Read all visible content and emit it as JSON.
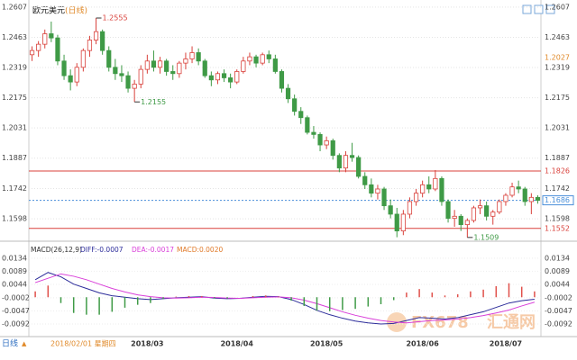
{
  "chart_data": [
    {
      "type": "candlestick",
      "title": "欧元美元",
      "period": "(日线)",
      "categories": [
        null,
        null,
        null,
        null,
        null,
        null,
        null,
        null,
        null,
        null,
        null,
        null,
        null,
        null,
        null,
        null,
        null,
        null,
        "2018/03",
        null,
        null,
        null,
        null,
        null,
        null,
        null,
        null,
        null,
        null,
        null,
        null,
        null,
        "2018/04",
        null,
        null,
        null,
        null,
        null,
        null,
        null,
        null,
        null,
        null,
        null,
        null,
        null,
        "2018/05",
        null,
        null,
        null,
        null,
        null,
        null,
        null,
        null,
        null,
        null,
        null,
        null,
        null,
        null,
        "2018/06",
        null,
        null,
        null,
        null,
        null,
        null,
        null,
        null,
        null,
        null,
        null,
        null,
        "2018/07",
        null,
        null,
        null,
        null,
        null
      ],
      "ohlc": [
        [
          1.238,
          1.242,
          1.235,
          1.24
        ],
        [
          1.24,
          1.2445,
          1.237,
          1.243
        ],
        [
          1.243,
          1.25,
          1.241,
          1.248
        ],
        [
          1.248,
          1.2538,
          1.244,
          1.246
        ],
        [
          1.246,
          1.2475,
          1.233,
          1.235
        ],
        [
          1.235,
          1.238,
          1.226,
          1.228
        ],
        [
          1.228,
          1.231,
          1.221,
          1.225
        ],
        [
          1.225,
          1.234,
          1.223,
          1.232
        ],
        [
          1.232,
          1.241,
          1.23,
          1.24
        ],
        [
          1.24,
          1.247,
          1.237,
          1.245
        ],
        [
          1.245,
          1.2555,
          1.243,
          1.249
        ],
        [
          1.249,
          1.25,
          1.238,
          1.24
        ],
        [
          1.24,
          1.242,
          1.23,
          1.232
        ],
        [
          1.232,
          1.236,
          1.226,
          1.229
        ],
        [
          1.229,
          1.233,
          1.225,
          1.228
        ],
        [
          1.228,
          1.23,
          1.22,
          1.222
        ],
        [
          1.222,
          1.226,
          1.2155,
          1.224
        ],
        [
          1.224,
          1.233,
          1.222,
          1.231
        ],
        [
          1.231,
          1.238,
          1.229,
          1.235
        ],
        [
          1.235,
          1.24,
          1.23,
          1.232
        ],
        [
          1.232,
          1.237,
          1.229,
          1.235
        ],
        [
          1.235,
          1.236,
          1.228,
          1.23
        ],
        [
          1.23,
          1.233,
          1.226,
          1.229
        ],
        [
          1.229,
          1.235,
          1.227,
          1.234
        ],
        [
          1.234,
          1.239,
          1.231,
          1.236
        ],
        [
          1.236,
          1.242,
          1.234,
          1.239
        ],
        [
          1.239,
          1.241,
          1.233,
          1.235
        ],
        [
          1.235,
          1.236,
          1.227,
          1.228
        ],
        [
          1.228,
          1.23,
          1.223,
          1.226
        ],
        [
          1.226,
          1.23,
          1.224,
          1.229
        ],
        [
          1.229,
          1.231,
          1.225,
          1.227
        ],
        [
          1.227,
          1.229,
          1.222,
          1.225
        ],
        [
          1.225,
          1.231,
          1.224,
          1.23
        ],
        [
          1.23,
          1.237,
          1.229,
          1.235
        ],
        [
          1.235,
          1.239,
          1.233,
          1.237
        ],
        [
          1.237,
          1.238,
          1.232,
          1.234
        ],
        [
          1.234,
          1.239,
          1.233,
          1.238
        ],
        [
          1.238,
          1.24,
          1.234,
          1.236
        ],
        [
          1.236,
          1.238,
          1.229,
          1.23
        ],
        [
          1.23,
          1.231,
          1.22,
          1.222
        ],
        [
          1.222,
          1.224,
          1.215,
          1.217
        ],
        [
          1.217,
          1.219,
          1.209,
          1.211
        ],
        [
          1.211,
          1.213,
          1.205,
          1.208
        ],
        [
          1.208,
          1.209,
          1.2,
          1.201
        ],
        [
          1.201,
          1.204,
          1.198,
          1.2
        ],
        [
          1.2,
          1.201,
          1.192,
          1.195
        ],
        [
          1.195,
          1.199,
          1.193,
          1.197
        ],
        [
          1.197,
          1.198,
          1.188,
          1.19
        ],
        [
          1.19,
          1.191,
          1.182,
          1.184
        ],
        [
          1.184,
          1.192,
          1.182,
          1.19
        ],
        [
          1.19,
          1.196,
          1.187,
          1.189
        ],
        [
          1.189,
          1.19,
          1.179,
          1.18
        ],
        [
          1.18,
          1.182,
          1.174,
          1.176
        ],
        [
          1.176,
          1.179,
          1.17,
          1.172
        ],
        [
          1.172,
          1.176,
          1.169,
          1.174
        ],
        [
          1.174,
          1.175,
          1.164,
          1.166
        ],
        [
          1.166,
          1.169,
          1.16,
          1.162
        ],
        [
          1.162,
          1.165,
          1.151,
          1.154
        ],
        [
          1.154,
          1.164,
          1.152,
          1.162
        ],
        [
          1.162,
          1.17,
          1.16,
          1.168
        ],
        [
          1.168,
          1.174,
          1.166,
          1.172
        ],
        [
          1.172,
          1.178,
          1.17,
          1.176
        ],
        [
          1.176,
          1.18,
          1.172,
          1.174
        ],
        [
          1.174,
          1.183,
          1.173,
          1.179
        ],
        [
          1.179,
          1.18,
          1.166,
          1.168
        ],
        [
          1.168,
          1.169,
          1.158,
          1.16
        ],
        [
          1.16,
          1.164,
          1.156,
          1.161
        ],
        [
          1.161,
          1.162,
          1.154,
          1.157
        ],
        [
          1.157,
          1.16,
          1.1509,
          1.159
        ],
        [
          1.159,
          1.166,
          1.158,
          1.165
        ],
        [
          1.165,
          1.169,
          1.162,
          1.166
        ],
        [
          1.166,
          1.168,
          1.159,
          1.161
        ],
        [
          1.161,
          1.164,
          1.157,
          1.163
        ],
        [
          1.163,
          1.169,
          1.162,
          1.168
        ],
        [
          1.168,
          1.172,
          1.166,
          1.171
        ],
        [
          1.171,
          1.177,
          1.17,
          1.175
        ],
        [
          1.175,
          1.178,
          1.172,
          1.174
        ],
        [
          1.174,
          1.175,
          1.166,
          1.168
        ],
        [
          1.168,
          1.172,
          1.162,
          1.17
        ],
        [
          1.17,
          1.171,
          1.167,
          1.1686
        ]
      ],
      "up_color": "#d9413b",
      "down_color": "#3f9a46",
      "ylim": [
        1.1504,
        1.2628
      ],
      "yticks": [
        1.1598,
        1.1742,
        1.1887,
        1.2031,
        1.2175,
        1.2319,
        1.2463,
        1.2607
      ],
      "grid": true,
      "annotations": [
        {
          "value": 1.2555
        },
        {
          "value": 1.2155
        },
        {
          "value": 1.1509
        }
      ],
      "hlines": [
        {
          "value": 1.1826,
          "color": "#d9413b",
          "style": "solid"
        },
        {
          "value": 1.1552,
          "color": "#d9413b",
          "style": "solid"
        },
        {
          "value": 1.1686,
          "color": "#4a8fd9",
          "style": "dashed"
        }
      ],
      "marker_label": "1.2027",
      "cursor_date": "2018/02/01 星期四",
      "period_button": "日线"
    },
    {
      "type": "macd",
      "name": "MACD(26,12,9)",
      "diff_label": "DIFF:-0.0007",
      "dea_label": "DEA:-0.0017",
      "macd_label": "MACD:0.0020",
      "ylim": [
        -0.0129,
        0.0149
      ],
      "yticks": [
        0.0134,
        0.0089,
        0.0044,
        -0.0002,
        -0.0047,
        -0.0092
      ],
      "series": [
        {
          "name": "DIFF",
          "color": "#2c2c9a",
          "values": [
            0.006,
            0.0085,
            0.007,
            0.0045,
            0.003,
            0.0015,
            0.0005,
            0.0,
            -0.0005,
            -0.0008,
            -0.0005,
            -0.0002,
            0.0,
            0.0002,
            -0.0003,
            -0.0005,
            -0.0004,
            0.0,
            0.0003,
            0.0002,
            -0.0008,
            -0.0025,
            -0.0045,
            -0.006,
            -0.0072,
            -0.0082,
            -0.0088,
            -0.0092,
            -0.009,
            -0.008,
            -0.007,
            -0.0072,
            -0.0075,
            -0.007,
            -0.006,
            -0.005,
            -0.0035,
            -0.002,
            -0.0012,
            -0.0007
          ]
        },
        {
          "name": "DEA",
          "color": "#d93fd9",
          "values": [
            0.005,
            0.0065,
            0.008,
            0.0072,
            0.006,
            0.0045,
            0.003,
            0.0018,
            0.0008,
            0.0002,
            -0.0002,
            -0.0003,
            -0.0002,
            0.0,
            -0.0001,
            -0.0003,
            -0.0004,
            -0.0002,
            0.0,
            0.0001,
            -0.0002,
            -0.001,
            -0.0022,
            -0.0036,
            -0.005,
            -0.0062,
            -0.0072,
            -0.008,
            -0.0085,
            -0.0088,
            -0.0084,
            -0.008,
            -0.0078,
            -0.0075,
            -0.007,
            -0.0063,
            -0.0054,
            -0.0044,
            -0.003,
            -0.0017
          ]
        },
        {
          "name": "MACD",
          "color": "#e07a2a",
          "values": [
            0.002,
            0.004,
            -0.002,
            -0.0054,
            -0.006,
            -0.006,
            -0.005,
            -0.0036,
            -0.0026,
            -0.002,
            -0.0006,
            0.0002,
            0.0004,
            0.0004,
            -0.0004,
            -0.0004,
            0.0,
            0.0004,
            0.0006,
            0.0002,
            -0.0012,
            -0.003,
            -0.0046,
            -0.0048,
            -0.0044,
            -0.004,
            -0.0032,
            -0.0024,
            -0.001,
            0.0016,
            0.0028,
            0.0016,
            0.0006,
            0.001,
            0.002,
            0.0026,
            0.0038,
            0.0048,
            0.0036,
            0.002
          ]
        }
      ],
      "pos_color": "#e0504a",
      "neg_color": "#3f9a46"
    }
  ],
  "watermark": {
    "brand": "FX678",
    "name": "汇通网"
  }
}
